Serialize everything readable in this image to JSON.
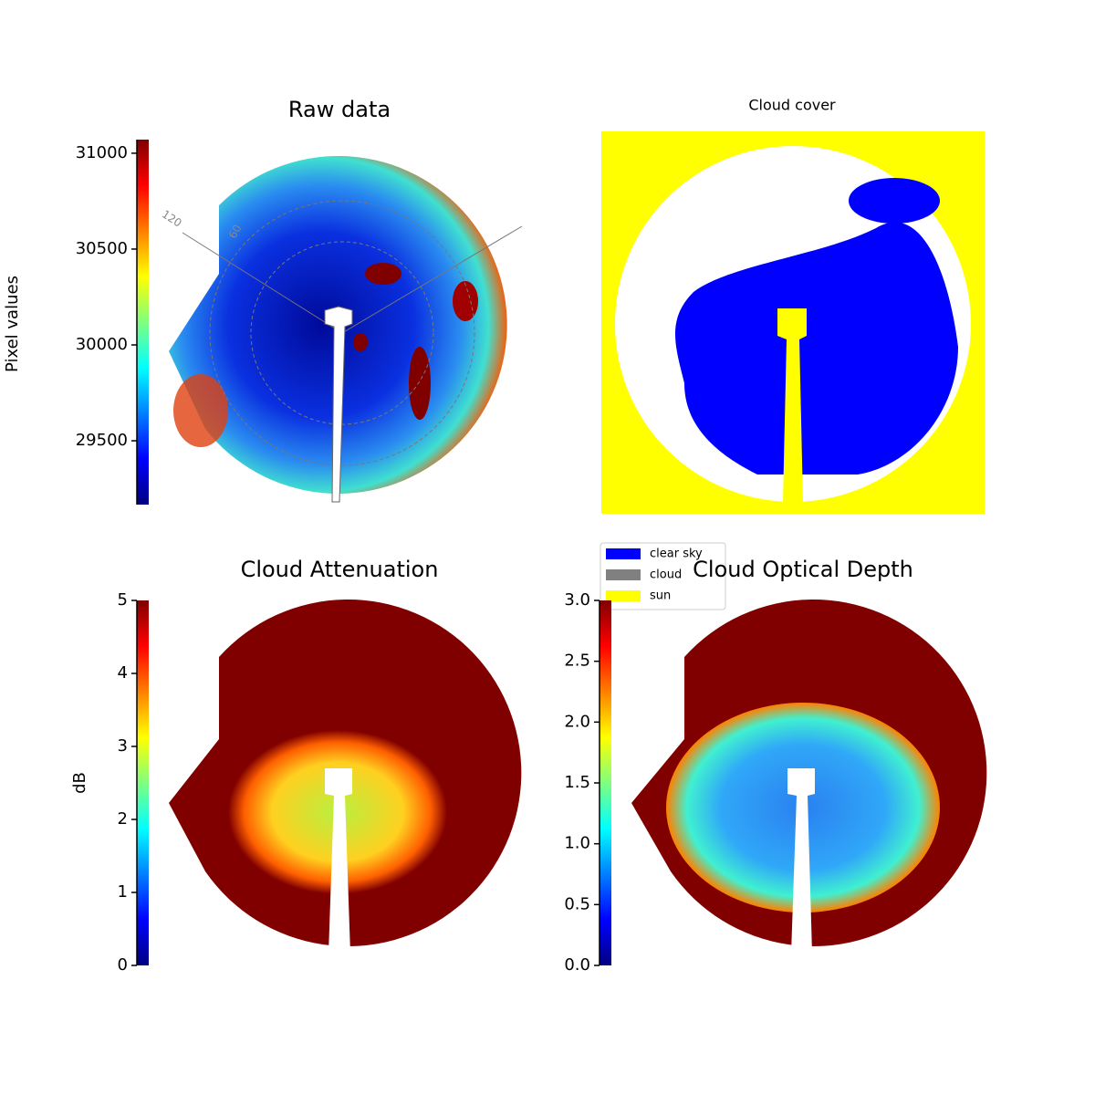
{
  "chart_data": [
    {
      "type": "image",
      "title": "Raw data",
      "colorbar_label": "Pixel values",
      "colormap": "jet",
      "ylim": [
        29167,
        31071
      ],
      "yticks": [
        29500,
        30000,
        30500,
        31000
      ],
      "polar_labels": [
        120,
        60
      ]
    },
    {
      "type": "image",
      "title": "Cloud cover",
      "classes": [
        {
          "name": "clear sky",
          "color": "#0000ff"
        },
        {
          "name": "cloud",
          "color": "#808080"
        },
        {
          "name": "sun",
          "color": "#ffff00"
        }
      ]
    },
    {
      "type": "image",
      "title": "Cloud Attenuation",
      "colorbar_label": "dB",
      "colormap": "jet",
      "ylim": [
        0,
        5
      ],
      "yticks": [
        0,
        1,
        2,
        3,
        4,
        5
      ]
    },
    {
      "type": "image",
      "title": "Cloud Optical Depth",
      "colormap": "jet",
      "ylim": [
        0,
        3
      ],
      "yticks": [
        {
          "value": 0,
          "label": "0.0"
        },
        {
          "value": 0.5,
          "label": "0.5"
        },
        {
          "value": 1,
          "label": "1.0"
        },
        {
          "value": 1.5,
          "label": "1.5"
        },
        {
          "value": 2,
          "label": "2.0"
        },
        {
          "value": 2.5,
          "label": "2.5"
        },
        {
          "value": 3,
          "label": "3.0"
        }
      ]
    }
  ]
}
